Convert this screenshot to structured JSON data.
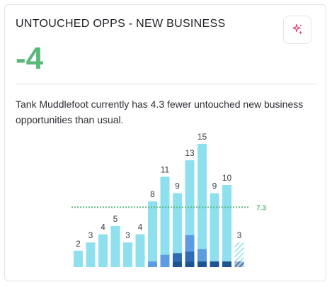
{
  "widget": {
    "title": "UNTOUCHED OPPS - NEW BUSINESS",
    "value": "-4",
    "description": "Tank Muddlefoot currently has 4.3 fewer untouched new business opportunities than usual.",
    "action_icon": "sparkle-icon"
  },
  "colors": {
    "bar_base": "#8fe0ee",
    "bar_segment_mid": "#5d9ce0",
    "bar_segment_low": "#2f6cb5",
    "bar_segment_dark": "#1f5493",
    "average_line": "#58b97a",
    "value_positive": "#58b97a"
  },
  "chart_data": {
    "type": "bar",
    "values": [
      2,
      3,
      4,
      5,
      3,
      4,
      8,
      11,
      9,
      13,
      15,
      9,
      10,
      3
    ],
    "value_labels": [
      "2",
      "3",
      "4",
      "5",
      "3",
      "4",
      "8",
      "11",
      "9",
      "13",
      "15",
      "9",
      "10",
      "3"
    ],
    "stacked_segments": [
      [],
      [],
      [],
      [],
      [],
      [],
      [
        {
          "value": 0.7,
          "shade": "mid"
        }
      ],
      [
        {
          "value": 1.5,
          "shade": "mid"
        }
      ],
      [
        {
          "value": 0.7,
          "shade": "dark"
        },
        {
          "value": 1.0,
          "shade": "low"
        }
      ],
      [
        {
          "value": 0.7,
          "shade": "dark"
        },
        {
          "value": 1.2,
          "shade": "low"
        },
        {
          "value": 2.0,
          "shade": "mid"
        }
      ],
      [
        {
          "value": 0.7,
          "shade": "dark"
        },
        {
          "value": 1.5,
          "shade": "mid"
        }
      ],
      [
        {
          "value": 0.7,
          "shade": "dark"
        }
      ],
      [
        {
          "value": 0.7,
          "shade": "dark"
        }
      ],
      [
        {
          "value": 0.7,
          "shade": "dark"
        }
      ]
    ],
    "last_bar_hatched": true,
    "average": 7.3,
    "average_label": "7.3",
    "ylim": [
      0,
      15
    ]
  }
}
